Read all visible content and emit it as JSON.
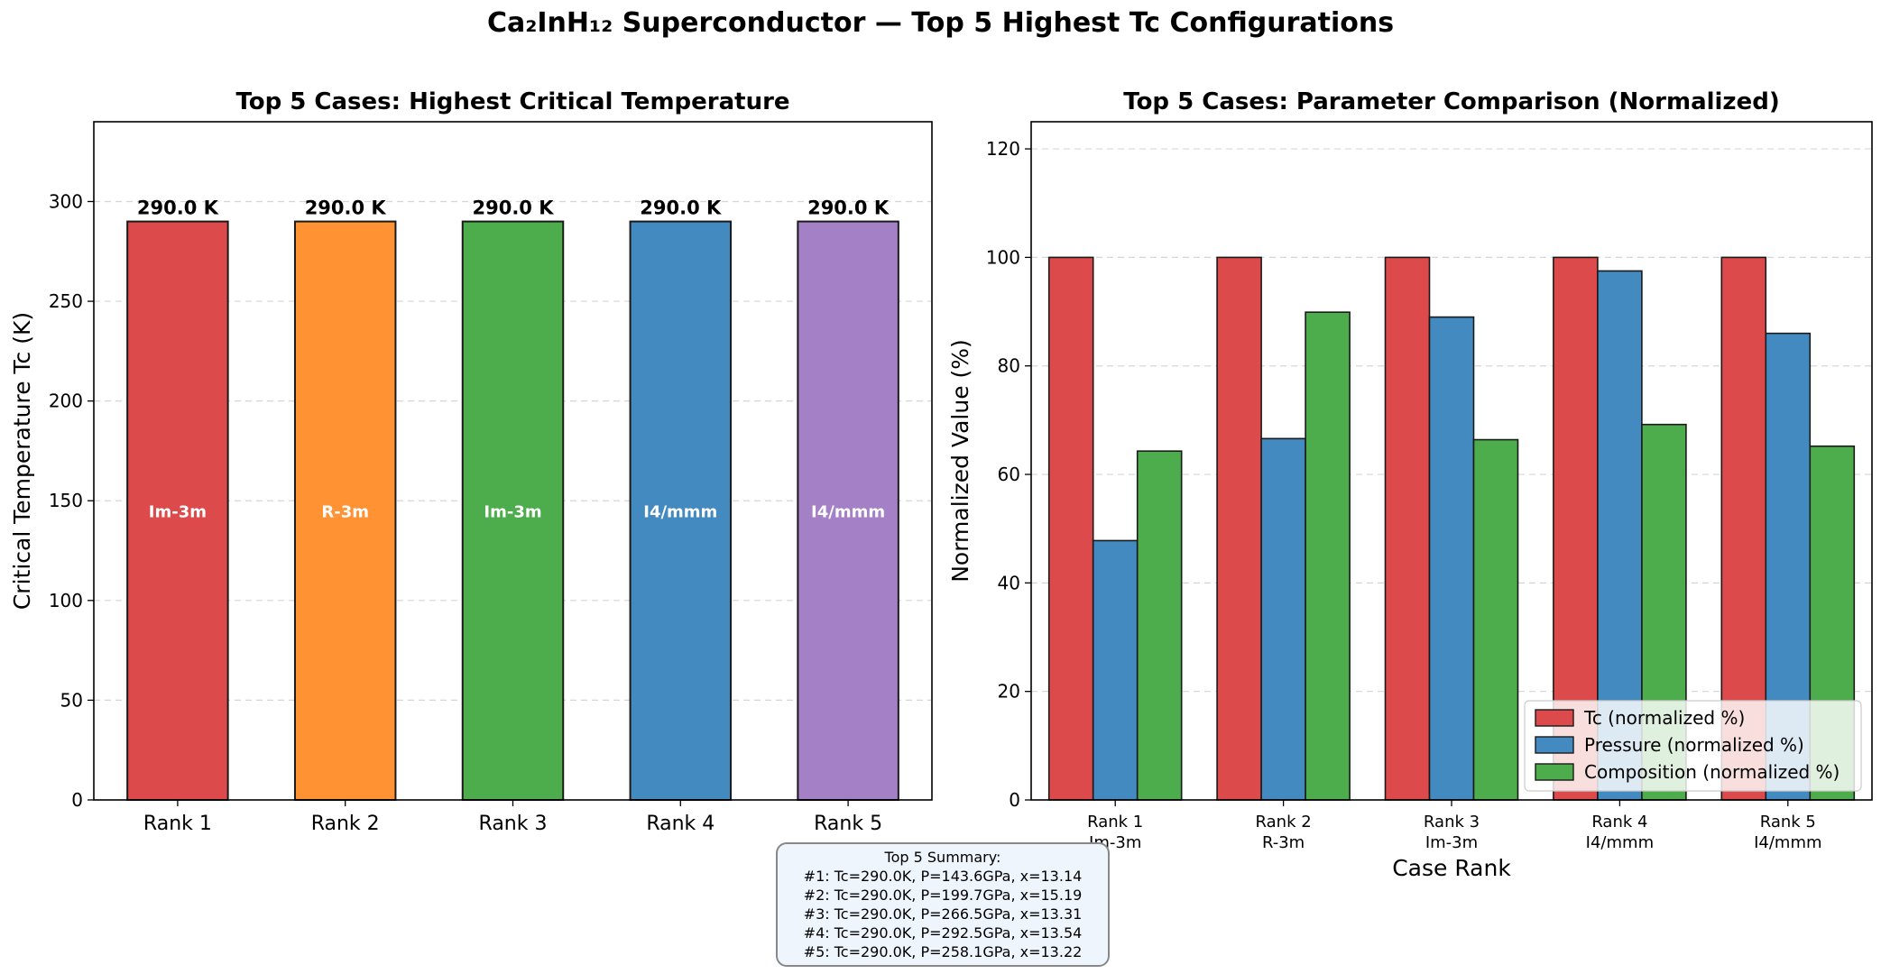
{
  "figure": {
    "title": "Ca₂InH₁₂ Superconductor — Top 5 Highest Tc Configurations"
  },
  "summary": {
    "heading": "Top 5 Summary:",
    "lines": [
      "#1: Tc=290.0K, P=143.6GPa, x=13.14",
      "#2: Tc=290.0K, P=199.7GPa, x=15.19",
      "#3: Tc=290.0K, P=266.5GPa, x=13.31",
      "#4: Tc=290.0K, P=292.5GPa, x=13.54",
      "#5: Tc=290.0K, P=258.1GPa, x=13.22"
    ]
  },
  "chart_data": [
    {
      "type": "bar",
      "title": "Top 5 Cases: Highest Critical Temperature",
      "xlabel": "",
      "ylabel": "Critical Temperature Tc (K)",
      "ylim": [
        0,
        340
      ],
      "yticks": [
        0,
        50,
        100,
        150,
        200,
        250,
        300
      ],
      "grid": true,
      "categories": [
        "Rank 1",
        "Rank 2",
        "Rank 3",
        "Rank 4",
        "Rank 5"
      ],
      "values": [
        290.0,
        290.0,
        290.0,
        290.0,
        290.0
      ],
      "value_labels": [
        "290.0 K",
        "290.0 K",
        "290.0 K",
        "290.0 K",
        "290.0 K"
      ],
      "inner_labels": [
        "Im-3m",
        "R-3m",
        "Im-3m",
        "I4/mmm",
        "I4/mmm"
      ],
      "colors": [
        "#dd4a4b",
        "#ff9233",
        "#4dad4c",
        "#438ac0",
        "#a480c6"
      ]
    },
    {
      "type": "bar",
      "title": "Top 5 Cases: Parameter Comparison (Normalized)",
      "xlabel": "Case Rank",
      "ylabel": "Normalized Value (%)",
      "ylim": [
        0,
        125
      ],
      "yticks": [
        0,
        20,
        40,
        60,
        80,
        100,
        120
      ],
      "grid": true,
      "legend_position": "bottom-right",
      "categories": [
        "Rank 1",
        "Rank 2",
        "Rank 3",
        "Rank 4",
        "Rank 5"
      ],
      "category_sublabels": [
        "Im-3m",
        "R-3m",
        "Im-3m",
        "I4/mmm",
        "I4/mmm"
      ],
      "series": [
        {
          "name": "Tc (normalized %)",
          "color": "#dd4a4b",
          "values": [
            100,
            100,
            100,
            100,
            100
          ]
        },
        {
          "name": "Pressure (normalized %)",
          "color": "#438ac0",
          "values": [
            47.8,
            66.6,
            89.0,
            97.5,
            86.0
          ]
        },
        {
          "name": "Composition (normalized %)",
          "color": "#4dad4c",
          "values": [
            64.3,
            89.9,
            66.4,
            69.2,
            65.2
          ]
        }
      ]
    }
  ]
}
